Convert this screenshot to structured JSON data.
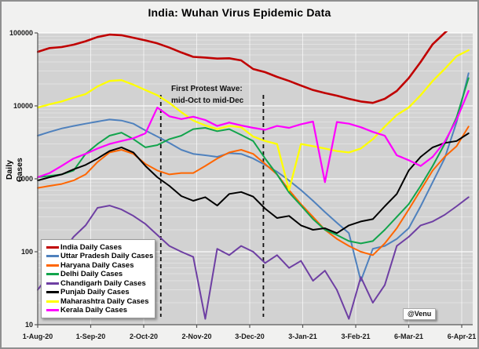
{
  "chart_title": "India: Wuhan Virus Epidemic Data",
  "y_axis_title": {
    "line1": "Daily",
    "line2": "Cases"
  },
  "annotation": {
    "line1": "First Protest Wave:",
    "line2": "mid-Oct to mid-Dec"
  },
  "watermark": "@Venu",
  "chart_data": {
    "type": "line",
    "title": "India: Wuhan Virus Epidemic Data",
    "ylabel": "Daily Cases",
    "xlabel": "",
    "y_scale": "log",
    "ylim": [
      10,
      100000
    ],
    "y_tick_labels": [
      "100000",
      "10000",
      "1000",
      "100",
      "10"
    ],
    "y_tick_values": [
      100000,
      10000,
      1000,
      100,
      10
    ],
    "x_tick_labels": [
      "1-Aug-20",
      "1-Sep-20",
      "2-Oct-20",
      "2-Nov-20",
      "3-Dec-20",
      "3-Jan-21",
      "3-Feb-21",
      "6-Mar-21",
      "6-Apr-21"
    ],
    "x_tick_days": [
      0,
      31,
      62,
      93,
      124,
      155,
      186,
      217,
      248
    ],
    "grid": true,
    "plot_bg": "#d2d2d2",
    "legend_position": "bottom-left",
    "annotation_marker_days": [
      72,
      132
    ],
    "sample_dates": [
      "1-Aug",
      "8-Aug",
      "15-Aug",
      "22-Aug",
      "29-Aug",
      "5-Sep",
      "12-Sep",
      "19-Sep",
      "26-Sep",
      "3-Oct",
      "10-Oct",
      "17-Oct",
      "24-Oct",
      "31-Oct",
      "7-Nov",
      "14-Nov",
      "21-Nov",
      "28-Nov",
      "5-Dec",
      "12-Dec",
      "19-Dec",
      "26-Dec",
      "2-Jan",
      "9-Jan",
      "16-Jan",
      "23-Jan",
      "30-Jan",
      "6-Feb",
      "13-Feb",
      "20-Feb",
      "27-Feb",
      "6-Mar",
      "13-Mar",
      "20-Mar",
      "27-Mar",
      "3-Apr",
      "10-Apr"
    ],
    "sample_days": [
      0,
      7,
      14,
      21,
      28,
      35,
      42,
      49,
      56,
      63,
      70,
      77,
      84,
      91,
      98,
      105,
      112,
      119,
      126,
      133,
      140,
      147,
      154,
      161,
      168,
      175,
      182,
      189,
      196,
      203,
      210,
      217,
      224,
      231,
      238,
      245,
      252
    ],
    "series": [
      {
        "name": "India Daily Cases",
        "color": "#c00000",
        "width": 2.6,
        "values": [
          55000,
          62000,
          64000,
          69000,
          77000,
          88000,
          95000,
          93000,
          86000,
          79000,
          72000,
          63000,
          54000,
          47000,
          46000,
          44500,
          45000,
          42000,
          32000,
          29000,
          25000,
          22000,
          19000,
          16500,
          15000,
          13800,
          12500,
          11500,
          11000,
          12500,
          16000,
          24000,
          40000,
          70000,
          100000,
          140000,
          180000
        ]
      },
      {
        "name": "Uttar Pradesh Daily Cases",
        "color": "#4f81bd",
        "width": 2,
        "values": [
          3900,
          4400,
          4900,
          5300,
          5700,
          6100,
          6500,
          6300,
          5700,
          4600,
          3800,
          3100,
          2500,
          2200,
          2100,
          2000,
          2250,
          2200,
          1900,
          1550,
          1250,
          950,
          700,
          500,
          350,
          250,
          180,
          40,
          110,
          120,
          150,
          210,
          420,
          900,
          1900,
          6000,
          28000
        ]
      },
      {
        "name": "Haryana Daily Cases",
        "color": "#ff6600",
        "width": 2,
        "values": [
          750,
          800,
          850,
          950,
          1150,
          1700,
          2300,
          2500,
          2200,
          1600,
          1300,
          1150,
          1200,
          1200,
          1500,
          1900,
          2300,
          2500,
          2200,
          1600,
          1150,
          700,
          450,
          300,
          200,
          150,
          120,
          100,
          90,
          130,
          210,
          380,
          700,
          1300,
          2000,
          2800,
          5200
        ]
      },
      {
        "name": "Delhi Daily Cases",
        "color": "#12a44c",
        "width": 2,
        "values": [
          1050,
          1100,
          1150,
          1300,
          2200,
          3000,
          3900,
          4300,
          3500,
          2700,
          2900,
          3500,
          3900,
          4800,
          5000,
          4500,
          4800,
          4000,
          3300,
          1900,
          1150,
          650,
          430,
          280,
          200,
          170,
          140,
          130,
          140,
          200,
          300,
          450,
          800,
          1500,
          3000,
          7000,
          24000
        ]
      },
      {
        "name": "Chandigarh Daily Cases",
        "color": "#6e3fa3",
        "width": 2,
        "values": [
          30,
          50,
          95,
          160,
          230,
          400,
          430,
          380,
          310,
          240,
          170,
          120,
          100,
          85,
          12,
          110,
          90,
          120,
          100,
          70,
          90,
          60,
          75,
          40,
          55,
          30,
          12,
          45,
          20,
          35,
          120,
          160,
          230,
          260,
          320,
          420,
          560
        ]
      },
      {
        "name": "Punjab Daily Cases",
        "color": "#000000",
        "width": 2,
        "values": [
          950,
          1050,
          1150,
          1350,
          1550,
          1900,
          2400,
          2700,
          2300,
          1500,
          1050,
          800,
          580,
          500,
          560,
          430,
          620,
          660,
          570,
          390,
          290,
          310,
          230,
          200,
          210,
          180,
          230,
          260,
          280,
          420,
          620,
          1300,
          2000,
          2700,
          3100,
          3300,
          4200
        ]
      },
      {
        "name": "Maharashtra Daily Cases",
        "color": "#ffff00",
        "width": 2.3,
        "values": [
          9500,
          10500,
          11500,
          13000,
          14500,
          18500,
          22000,
          22500,
          19500,
          16500,
          14000,
          11000,
          8200,
          6300,
          5400,
          4800,
          5300,
          5100,
          3800,
          3300,
          3000,
          700,
          3000,
          2800,
          2600,
          2400,
          2300,
          2600,
          3500,
          5200,
          7500,
          9500,
          14000,
          22000,
          32000,
          48000,
          58000
        ]
      },
      {
        "name": "Kerala Daily Cases",
        "color": "#ff00ff",
        "width": 2.2,
        "values": [
          1050,
          1200,
          1500,
          1900,
          2200,
          2600,
          3000,
          3300,
          3600,
          4200,
          9500,
          7200,
          6600,
          7100,
          6400,
          5300,
          5900,
          5400,
          5000,
          4700,
          5300,
          5000,
          5600,
          6100,
          900,
          6000,
          5700,
          5100,
          4400,
          3900,
          2100,
          1800,
          1500,
          2000,
          3200,
          6500,
          16000
        ]
      }
    ]
  }
}
